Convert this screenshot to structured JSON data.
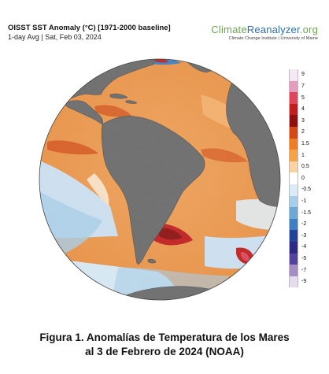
{
  "header": {
    "title": "OISST SST Anomaly (°C) [1971-2000 baseline]",
    "subtitle": "1-day Avg | Sat, Feb 03, 2024"
  },
  "brand": {
    "name_part1": "Climate",
    "name_part2": "Reanalyzer",
    "name_part3": ".org",
    "tagline": "Climate Change Institute | University of Maine"
  },
  "legend": {
    "items": [
      {
        "label": "9",
        "color": "#f6e8f4"
      },
      {
        "label": "7",
        "color": "#e79bbf"
      },
      {
        "label": "5",
        "color": "#e0455a"
      },
      {
        "label": "4",
        "color": "#c41d1d"
      },
      {
        "label": "3",
        "color": "#8e1010"
      },
      {
        "label": "2",
        "color": "#d34a14"
      },
      {
        "label": "1.5",
        "color": "#ef7d22"
      },
      {
        "label": "1",
        "color": "#f7a247"
      },
      {
        "label": "0.5",
        "color": "#fbd2a1"
      },
      {
        "label": "0",
        "color": "#ffffff"
      },
      {
        "label": "-0.5",
        "color": "#d9ecf7"
      },
      {
        "label": "-1",
        "color": "#a8cfea"
      },
      {
        "label": "-1.5",
        "color": "#6ea9d6"
      },
      {
        "label": "-2",
        "color": "#3d7fc0"
      },
      {
        "label": "-3",
        "color": "#23439a"
      },
      {
        "label": "-4",
        "color": "#2c2a86"
      },
      {
        "label": "-5",
        "color": "#54429e"
      },
      {
        "label": "-7",
        "color": "#a58cc4"
      },
      {
        "label": "-9",
        "color": "#e7dcef"
      }
    ]
  },
  "caption": {
    "line1": "Figura 1. Anomalías de Temperatura de los Mares",
    "line2": "al 3 de Febrero de 2024 (NOAA)"
  }
}
